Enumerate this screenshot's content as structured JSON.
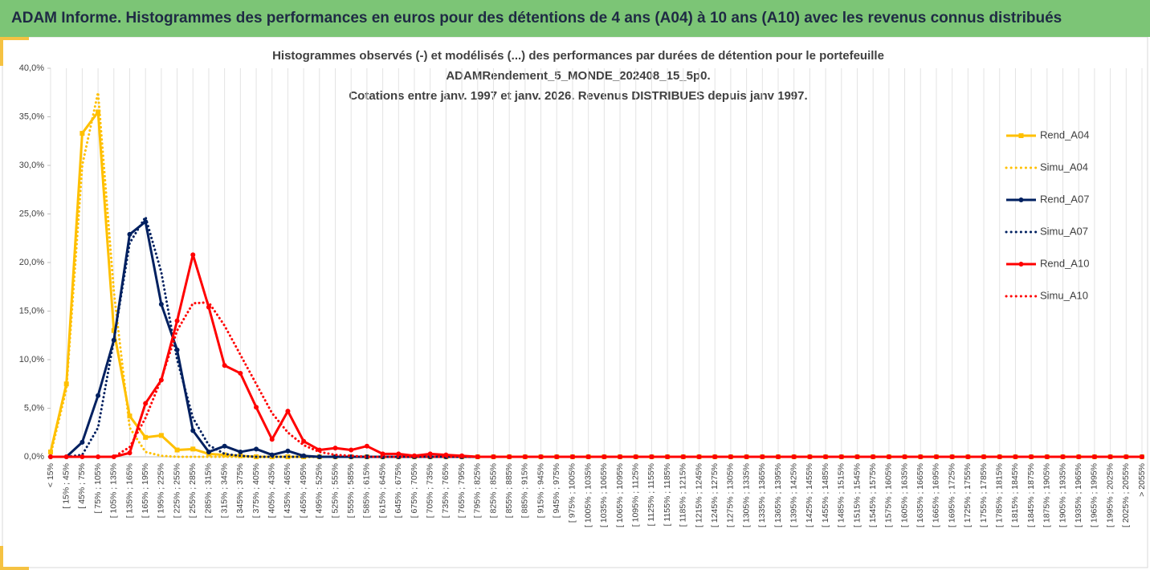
{
  "header": {
    "title": "ADAM Informe. Histogrammes des performances en euros pour des détentions de 4 ans (A04) à 10 ans (A10) avec les revenus connus distribués"
  },
  "chart_data": {
    "type": "line",
    "title": [
      "Histogrammes observés (-) et modélisés (...) des performances par durées de détention pour le portefeuille",
      "ADAMRendement_5_MONDE_202408_15_5p0.",
      "Cotations entre janv. 1997 et janv. 2026. Revenus DISTRIBUES depuis janv 1997."
    ],
    "categories": [
      "< 15%",
      "[ 15% ; 45%",
      "[ 45% ; 75%",
      "[ 75% ; 105%",
      "[ 105% ; 135%",
      "[ 135% ; 165%",
      "[ 165% ; 195%",
      "[ 195% ; 225%",
      "[ 225% ; 255%",
      "[ 255% ; 285%",
      "[ 285% ; 315%",
      "[ 315% ; 345%",
      "[ 345% ; 375%",
      "[ 375% ; 405%",
      "[ 405% ; 435%",
      "[ 435% ; 465%",
      "[ 465% ; 495%",
      "[ 495% ; 525%",
      "[ 525% ; 555%",
      "[ 555% ; 585%",
      "[ 585% ; 615%",
      "[ 615% ; 645%",
      "[ 645% ; 675%",
      "[ 675% ; 705%",
      "[ 705% ; 735%",
      "[ 735% ; 765%",
      "[ 765% ; 795%",
      "[ 795% ; 825%",
      "[ 825% ; 855%",
      "[ 855% ; 885%",
      "[ 885% ; 915%",
      "[ 915% ; 945%",
      "[ 945% ; 975%",
      "[ 975% ; 1005%",
      "[ 1005% ; 1035%",
      "[ 1035% ; 1065%",
      "[ 1065% ; 1095%",
      "[ 1095% ; 1125%",
      "[ 1125% ; 1155%",
      "[ 1155% ; 1185%",
      "[ 1185% ; 1215%",
      "[ 1215% ; 1245%",
      "[ 1245% ; 1275%",
      "[ 1275% ; 1305%",
      "[ 1305% ; 1335%",
      "[ 1335% ; 1365%",
      "[ 1365% ; 1395%",
      "[ 1395% ; 1425%",
      "[ 1425% ; 1455%",
      "[ 1455% ; 1485%",
      "[ 1485% ; 1515%",
      "[ 1515% ; 1545%",
      "[ 1545% ; 1575%",
      "[ 1575% ; 1605%",
      "[ 1605% ; 1635%",
      "[ 1635% ; 1665%",
      "[ 1665% ; 1695%",
      "[ 1695% ; 1725%",
      "[ 1725% ; 1755%",
      "[ 1755% ; 1785%",
      "[ 1785% ; 1815%",
      "[ 1815% ; 1845%",
      "[ 1845% ; 1875%",
      "[ 1875% ; 1905%",
      "[ 1905% ; 1935%",
      "[ 1935% ; 1965%",
      "[ 1965% ; 1995%",
      "[ 1995% ; 2025%",
      "[ 2025% ; 2055%",
      "> 2055%"
    ],
    "series": [
      {
        "name": "Rend_A04",
        "color": "#ffc000",
        "style": "solid",
        "marker": "square",
        "values": [
          0.5,
          7.5,
          33.3,
          35.5,
          13,
          4.2,
          2,
          2.2,
          0.7,
          0.8,
          0.3,
          0.2,
          0.1,
          0,
          0,
          0,
          0,
          0,
          0,
          0,
          0,
          0,
          0,
          0,
          0,
          0,
          0,
          0,
          0,
          0,
          0,
          0,
          0,
          0,
          0,
          0,
          0,
          0,
          0,
          0,
          0,
          0,
          0,
          0,
          0,
          0,
          0,
          0,
          0,
          0,
          0,
          0,
          0,
          0,
          0,
          0,
          0,
          0,
          0,
          0,
          0,
          0,
          0,
          0,
          0,
          0,
          0,
          0,
          0,
          0
        ]
      },
      {
        "name": "Simu_A04",
        "color": "#ffc000",
        "style": "dotted",
        "marker": "none",
        "values": [
          0.2,
          7,
          30,
          37.5,
          17,
          3,
          0.5,
          0.1,
          0,
          0,
          0,
          0,
          0,
          0,
          0,
          0,
          0,
          0,
          0,
          0,
          0,
          0,
          0,
          0,
          0,
          0,
          0,
          0,
          0,
          0,
          0,
          0,
          0,
          0,
          0,
          0,
          0,
          0,
          0,
          0,
          0,
          0,
          0,
          0,
          0,
          0,
          0,
          0,
          0,
          0,
          0,
          0,
          0,
          0,
          0,
          0,
          0,
          0,
          0,
          0,
          0,
          0,
          0,
          0,
          0,
          0,
          0,
          0,
          0,
          0
        ]
      },
      {
        "name": "Rend_A07",
        "color": "#002060",
        "style": "solid",
        "marker": "circle",
        "values": [
          0,
          0,
          1.5,
          6.3,
          12,
          22.9,
          24.2,
          15.7,
          11,
          2.7,
          0.5,
          1.1,
          0.5,
          0.8,
          0.2,
          0.6,
          0.1,
          0,
          0,
          0,
          0,
          0,
          0,
          0,
          0,
          0,
          0,
          0,
          0,
          0,
          0,
          0,
          0,
          0,
          0,
          0,
          0,
          0,
          0,
          0,
          0,
          0,
          0,
          0,
          0,
          0,
          0,
          0,
          0,
          0,
          0,
          0,
          0,
          0,
          0,
          0,
          0,
          0,
          0,
          0,
          0,
          0,
          0,
          0,
          0,
          0,
          0,
          0,
          0,
          0
        ]
      },
      {
        "name": "Simu_A07",
        "color": "#002060",
        "style": "dotted",
        "marker": "none",
        "values": [
          0,
          0,
          0.2,
          3,
          12,
          22,
          24.7,
          19,
          10,
          4,
          1.2,
          0.3,
          0.1,
          0,
          0,
          0,
          0,
          0,
          0,
          0,
          0,
          0,
          0,
          0,
          0,
          0,
          0,
          0,
          0,
          0,
          0,
          0,
          0,
          0,
          0,
          0,
          0,
          0,
          0,
          0,
          0,
          0,
          0,
          0,
          0,
          0,
          0,
          0,
          0,
          0,
          0,
          0,
          0,
          0,
          0,
          0,
          0,
          0,
          0,
          0,
          0,
          0,
          0,
          0,
          0,
          0,
          0,
          0,
          0,
          0
        ]
      },
      {
        "name": "Rend_A10",
        "color": "#ff0000",
        "style": "solid",
        "marker": "circle",
        "values": [
          0,
          0,
          0,
          0,
          0,
          0.4,
          5.5,
          7.9,
          14,
          20.8,
          15.4,
          9.4,
          8.6,
          5.1,
          1.8,
          4.7,
          1.6,
          0.7,
          0.9,
          0.7,
          1.1,
          0.3,
          0.3,
          0.1,
          0.3,
          0.2,
          0.1,
          0,
          0,
          0,
          0,
          0,
          0,
          0,
          0,
          0,
          0,
          0,
          0,
          0,
          0,
          0,
          0,
          0,
          0,
          0,
          0,
          0,
          0,
          0,
          0,
          0,
          0,
          0,
          0,
          0,
          0,
          0,
          0,
          0,
          0,
          0,
          0,
          0,
          0,
          0,
          0,
          0,
          0,
          0
        ]
      },
      {
        "name": "Simu_A10",
        "color": "#ff0000",
        "style": "dotted",
        "marker": "none",
        "values": [
          0,
          0,
          0,
          0,
          0,
          1,
          4,
          8,
          13,
          15.8,
          15.9,
          13.5,
          10.5,
          7.5,
          4.5,
          2.5,
          1.2,
          0.5,
          0.2,
          0.1,
          0,
          0,
          0,
          0,
          0,
          0,
          0,
          0,
          0,
          0,
          0,
          0,
          0,
          0,
          0,
          0,
          0,
          0,
          0,
          0,
          0,
          0,
          0,
          0,
          0,
          0,
          0,
          0,
          0,
          0,
          0,
          0,
          0,
          0,
          0,
          0,
          0,
          0,
          0,
          0,
          0,
          0,
          0,
          0,
          0,
          0,
          0,
          0,
          0,
          0
        ]
      }
    ],
    "ylim": [
      0,
      40
    ],
    "yticks": [
      {
        "value": 0,
        "label": "0,0%"
      },
      {
        "value": 5,
        "label": "5,0%"
      },
      {
        "value": 10,
        "label": "10,0%"
      },
      {
        "value": 15,
        "label": "15,0%"
      },
      {
        "value": 20,
        "label": "20,0%"
      },
      {
        "value": 25,
        "label": "25,0%"
      },
      {
        "value": 30,
        "label": "30,0%"
      },
      {
        "value": 35,
        "label": "35,0%"
      },
      {
        "value": 40,
        "label": "40,0%"
      }
    ],
    "grid": "x",
    "legend": "right"
  }
}
